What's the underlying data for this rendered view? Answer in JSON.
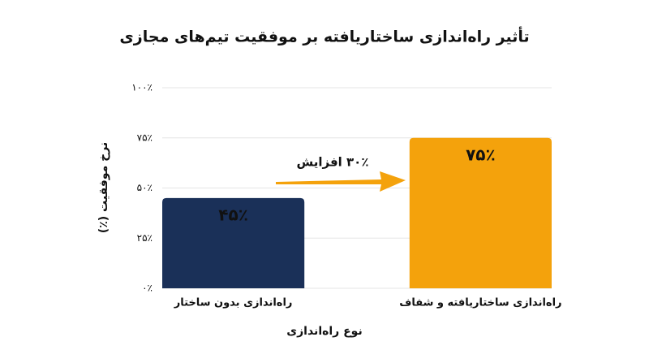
{
  "chart_data": {
    "type": "bar",
    "title": "تأثیر راه‌اندازی ساختاریافته بر موفقیت تیم‌های مجازی",
    "x_label": "نوع راه‌اندازی",
    "y_label": "نرخ موفقیت (٪)",
    "categories": [
      "راه‌اندازی بدون ساختار",
      "راه‌اندازی ساختاریافته و شفاف"
    ],
    "values": [
      45,
      75
    ],
    "value_labels": [
      "۴۵٪",
      "۷۵٪"
    ],
    "colors": [
      "#1a3058",
      "#f4a20c"
    ],
    "annotation": "۳۰٪ افزایش",
    "ylim": [
      0,
      100
    ],
    "yticks": [
      {
        "value": 0,
        "label": "۰٪"
      },
      {
        "value": 25,
        "label": "۲۵٪"
      },
      {
        "value": 50,
        "label": "۵۰٪"
      },
      {
        "value": 75,
        "label": "۷۵٪"
      },
      {
        "value": 100,
        "label": "۱۰۰٪"
      }
    ],
    "grid": true
  }
}
